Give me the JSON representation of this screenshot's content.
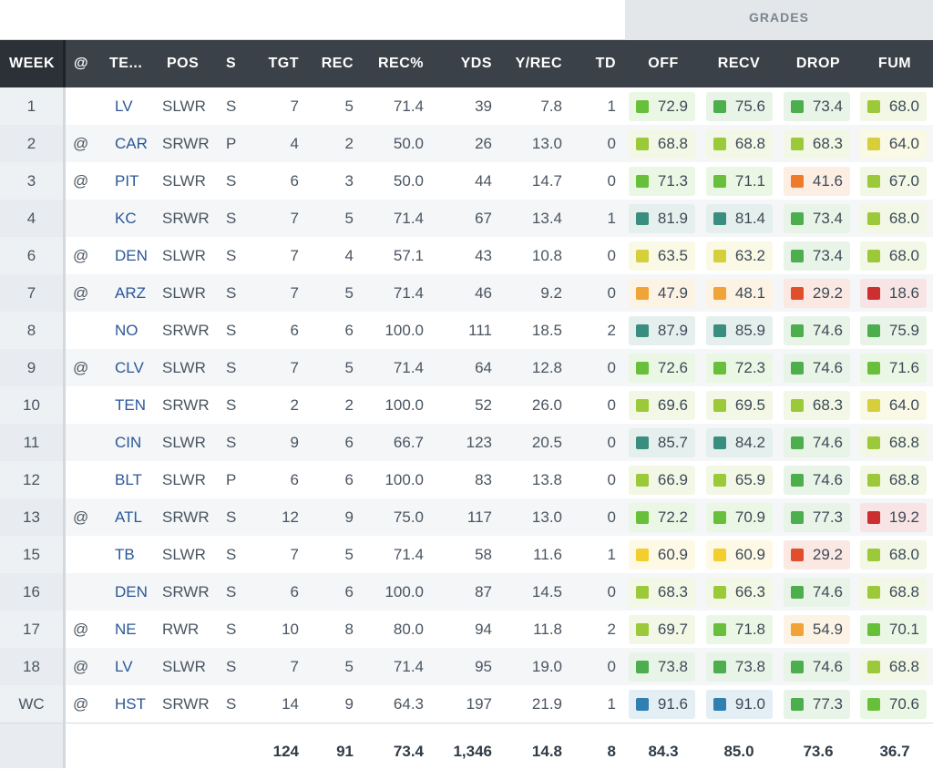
{
  "grades_label": "GRADES",
  "headers": {
    "week": "WEEK",
    "at": "@",
    "team": "TE...",
    "pos": "POS",
    "s": "S",
    "tgt": "TGT",
    "rec": "REC",
    "recpct": "REC%",
    "yds": "YDS",
    "yrec": "Y/REC",
    "td": "TD",
    "off": "OFF",
    "recv": "RECV",
    "drop": "DROP",
    "fum": "FUM"
  },
  "rows": [
    {
      "week": "1",
      "at": "",
      "team": "LV",
      "pos": "SLWR",
      "s": "S",
      "tgt": "7",
      "rec": "5",
      "recpct": "71.4",
      "yds": "39",
      "yrec": "7.8",
      "td": "1",
      "off": "72.9",
      "recv": "75.6",
      "drop": "73.4",
      "fum": "68.0"
    },
    {
      "week": "2",
      "at": "@",
      "team": "CAR",
      "pos": "SRWR",
      "s": "P",
      "tgt": "4",
      "rec": "2",
      "recpct": "50.0",
      "yds": "26",
      "yrec": "13.0",
      "td": "0",
      "off": "68.8",
      "recv": "68.8",
      "drop": "68.3",
      "fum": "64.0"
    },
    {
      "week": "3",
      "at": "@",
      "team": "PIT",
      "pos": "SLWR",
      "s": "S",
      "tgt": "6",
      "rec": "3",
      "recpct": "50.0",
      "yds": "44",
      "yrec": "14.7",
      "td": "0",
      "off": "71.3",
      "recv": "71.1",
      "drop": "41.6",
      "fum": "67.0"
    },
    {
      "week": "4",
      "at": "",
      "team": "KC",
      "pos": "SRWR",
      "s": "S",
      "tgt": "7",
      "rec": "5",
      "recpct": "71.4",
      "yds": "67",
      "yrec": "13.4",
      "td": "1",
      "off": "81.9",
      "recv": "81.4",
      "drop": "73.4",
      "fum": "68.0"
    },
    {
      "week": "6",
      "at": "@",
      "team": "DEN",
      "pos": "SLWR",
      "s": "S",
      "tgt": "7",
      "rec": "4",
      "recpct": "57.1",
      "yds": "43",
      "yrec": "10.8",
      "td": "0",
      "off": "63.5",
      "recv": "63.2",
      "drop": "73.4",
      "fum": "68.0"
    },
    {
      "week": "7",
      "at": "@",
      "team": "ARZ",
      "pos": "SLWR",
      "s": "S",
      "tgt": "7",
      "rec": "5",
      "recpct": "71.4",
      "yds": "46",
      "yrec": "9.2",
      "td": "0",
      "off": "47.9",
      "recv": "48.1",
      "drop": "29.2",
      "fum": "18.6"
    },
    {
      "week": "8",
      "at": "",
      "team": "NO",
      "pos": "SRWR",
      "s": "S",
      "tgt": "6",
      "rec": "6",
      "recpct": "100.0",
      "yds": "111",
      "yrec": "18.5",
      "td": "2",
      "off": "87.9",
      "recv": "85.9",
      "drop": "74.6",
      "fum": "75.9"
    },
    {
      "week": "9",
      "at": "@",
      "team": "CLV",
      "pos": "SLWR",
      "s": "S",
      "tgt": "7",
      "rec": "5",
      "recpct": "71.4",
      "yds": "64",
      "yrec": "12.8",
      "td": "0",
      "off": "72.6",
      "recv": "72.3",
      "drop": "74.6",
      "fum": "71.6"
    },
    {
      "week": "10",
      "at": "",
      "team": "TEN",
      "pos": "SRWR",
      "s": "S",
      "tgt": "2",
      "rec": "2",
      "recpct": "100.0",
      "yds": "52",
      "yrec": "26.0",
      "td": "0",
      "off": "69.6",
      "recv": "69.5",
      "drop": "68.3",
      "fum": "64.0"
    },
    {
      "week": "11",
      "at": "",
      "team": "CIN",
      "pos": "SLWR",
      "s": "S",
      "tgt": "9",
      "rec": "6",
      "recpct": "66.7",
      "yds": "123",
      "yrec": "20.5",
      "td": "0",
      "off": "85.7",
      "recv": "84.2",
      "drop": "74.6",
      "fum": "68.8"
    },
    {
      "week": "12",
      "at": "",
      "team": "BLT",
      "pos": "SLWR",
      "s": "P",
      "tgt": "6",
      "rec": "6",
      "recpct": "100.0",
      "yds": "83",
      "yrec": "13.8",
      "td": "0",
      "off": "66.9",
      "recv": "65.9",
      "drop": "74.6",
      "fum": "68.8"
    },
    {
      "week": "13",
      "at": "@",
      "team": "ATL",
      "pos": "SRWR",
      "s": "S",
      "tgt": "12",
      "rec": "9",
      "recpct": "75.0",
      "yds": "117",
      "yrec": "13.0",
      "td": "0",
      "off": "72.2",
      "recv": "70.9",
      "drop": "77.3",
      "fum": "19.2"
    },
    {
      "week": "15",
      "at": "",
      "team": "TB",
      "pos": "SLWR",
      "s": "S",
      "tgt": "7",
      "rec": "5",
      "recpct": "71.4",
      "yds": "58",
      "yrec": "11.6",
      "td": "1",
      "off": "60.9",
      "recv": "60.9",
      "drop": "29.2",
      "fum": "68.0"
    },
    {
      "week": "16",
      "at": "",
      "team": "DEN",
      "pos": "SRWR",
      "s": "S",
      "tgt": "6",
      "rec": "6",
      "recpct": "100.0",
      "yds": "87",
      "yrec": "14.5",
      "td": "0",
      "off": "68.3",
      "recv": "66.3",
      "drop": "74.6",
      "fum": "68.8"
    },
    {
      "week": "17",
      "at": "@",
      "team": "NE",
      "pos": "RWR",
      "s": "S",
      "tgt": "10",
      "rec": "8",
      "recpct": "80.0",
      "yds": "94",
      "yrec": "11.8",
      "td": "2",
      "off": "69.7",
      "recv": "71.8",
      "drop": "54.9",
      "fum": "70.1"
    },
    {
      "week": "18",
      "at": "@",
      "team": "LV",
      "pos": "SLWR",
      "s": "S",
      "tgt": "7",
      "rec": "5",
      "recpct": "71.4",
      "yds": "95",
      "yrec": "19.0",
      "td": "0",
      "off": "73.8",
      "recv": "73.8",
      "drop": "74.6",
      "fum": "68.8"
    },
    {
      "week": "WC",
      "at": "@",
      "team": "HST",
      "pos": "SRWR",
      "s": "S",
      "tgt": "14",
      "rec": "9",
      "recpct": "64.3",
      "yds": "197",
      "yrec": "21.9",
      "td": "1",
      "off": "91.6",
      "recv": "91.0",
      "drop": "77.3",
      "fum": "70.6"
    }
  ],
  "totals": {
    "tgt": "124",
    "rec": "91",
    "recpct": "73.4",
    "yds": "1,346",
    "yrec": "14.8",
    "td": "8",
    "off": "84.3",
    "recv": "85.0",
    "drop": "73.6",
    "fum": "36.7"
  },
  "grade_colors": {
    "elite_blue": "#2f7fb0",
    "high_teal": "#3a8e80",
    "good_green": "#4cae4c",
    "above_green": "#68c03a",
    "avg_lime": "#9cc93a",
    "below_yellow": "#d4cf3a",
    "low_yellow": "#f2cf2f",
    "poor_orange": "#f0a336",
    "bad_orange": "#ee7a2c",
    "bad_red": "#e04e2b",
    "worst_red": "#cc2f2f"
  }
}
